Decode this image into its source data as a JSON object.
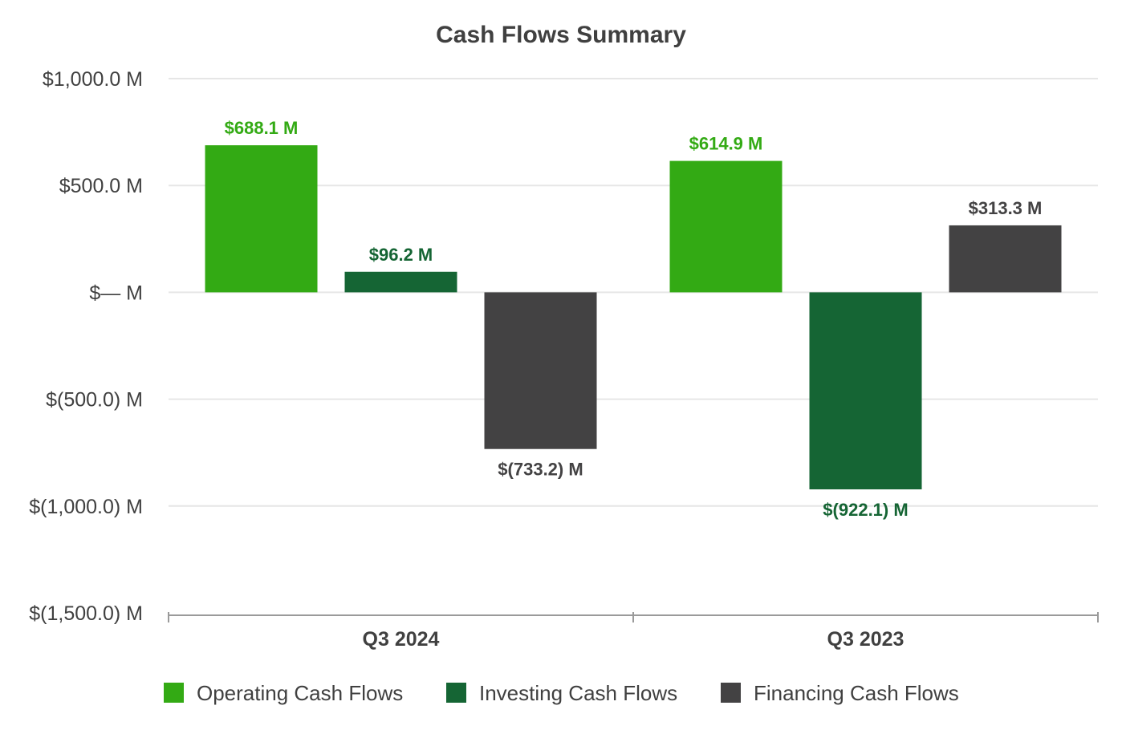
{
  "chart_data": {
    "type": "bar",
    "title": "Cash Flows Summary",
    "categories": [
      "Q3 2024",
      "Q3 2023"
    ],
    "series": [
      {
        "name": "Operating Cash Flows",
        "color": "#33aa14",
        "values": [
          688.1,
          614.9
        ],
        "labels": [
          "$688.1 M",
          "$614.9 M"
        ]
      },
      {
        "name": "Investing Cash Flows",
        "color": "#156534",
        "values": [
          96.2,
          -922.1
        ],
        "labels": [
          "$96.2 M",
          "$(922.1) M"
        ]
      },
      {
        "name": "Financing Cash Flows",
        "color": "#434243",
        "values": [
          -733.2,
          313.3
        ],
        "labels": [
          "$(733.2) M",
          "$313.3 M"
        ]
      }
    ],
    "ylim": [
      -1500,
      1000
    ],
    "yticks": [
      1000,
      500,
      0,
      -500,
      -1000,
      -1500
    ],
    "ytick_labels": [
      "$1,000.0 M",
      "$500.0 M",
      "$— M",
      "$(500.0) M",
      "$(1,000.0) M",
      "$(1,500.0) M"
    ],
    "xlabel": "",
    "ylabel": "",
    "grid": true,
    "legend_position": "bottom"
  }
}
